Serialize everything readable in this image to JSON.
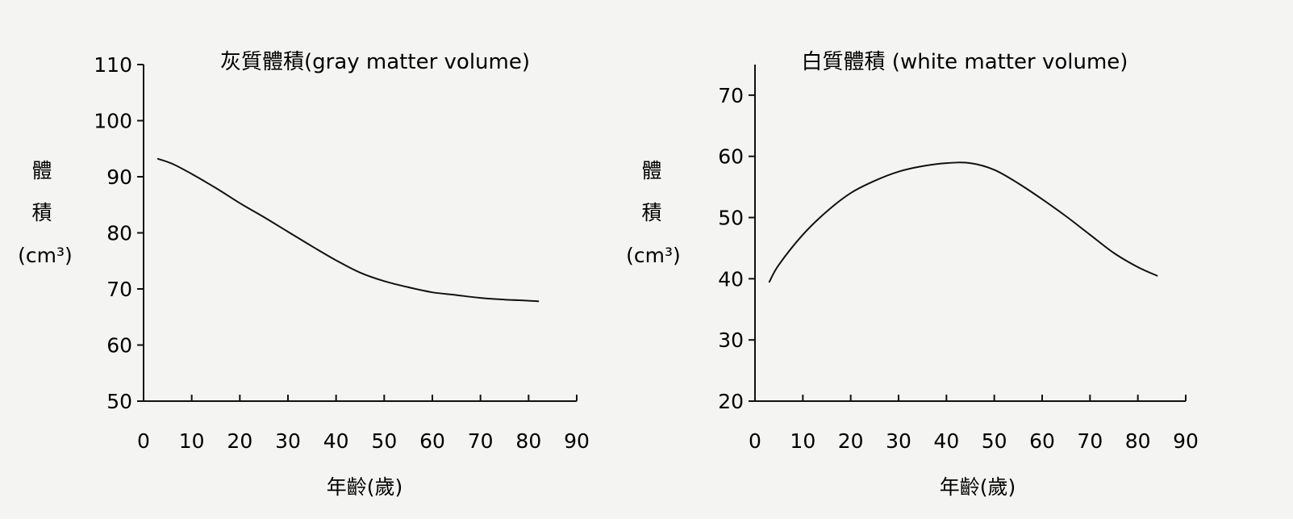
{
  "chart_data": [
    {
      "type": "line",
      "title": "灰質體積(gray matter volume)",
      "xlabel": "年齡(歲)",
      "ylabel_lines": [
        "體",
        "積",
        "(cm³)"
      ],
      "xlim": [
        0,
        90
      ],
      "ylim": [
        50,
        110
      ],
      "xticks": [
        0,
        10,
        20,
        30,
        40,
        50,
        60,
        70,
        80,
        90
      ],
      "yticks": [
        50,
        60,
        70,
        80,
        90,
        100,
        110
      ],
      "grid": false,
      "line_color": "#111111",
      "series": [
        {
          "x": [
            3,
            6,
            10,
            15,
            20,
            25,
            30,
            35,
            40,
            45,
            50,
            55,
            60,
            65,
            70,
            75,
            80,
            82
          ],
          "values": [
            93.2,
            92.3,
            90.5,
            88.0,
            85.3,
            82.8,
            80.2,
            77.6,
            75.1,
            72.9,
            71.4,
            70.3,
            69.4,
            68.9,
            68.4,
            68.1,
            67.9,
            67.8
          ]
        }
      ]
    },
    {
      "type": "line",
      "title": "白質體積 (white matter volume)",
      "xlabel": "年齡(歲)",
      "ylabel_lines": [
        "體",
        "積",
        "(cm³)"
      ],
      "xlim": [
        0,
        90
      ],
      "ylim": [
        20,
        75
      ],
      "xticks": [
        0,
        10,
        20,
        30,
        40,
        50,
        60,
        70,
        80,
        90
      ],
      "yticks": [
        20,
        30,
        40,
        50,
        60,
        70
      ],
      "grid": false,
      "line_color": "#111111",
      "series": [
        {
          "x": [
            3,
            5,
            10,
            15,
            20,
            25,
            30,
            35,
            40,
            45,
            50,
            55,
            60,
            65,
            70,
            75,
            80,
            84
          ],
          "values": [
            39.5,
            42.3,
            47.2,
            51.0,
            54.0,
            56.0,
            57.5,
            58.4,
            58.9,
            58.9,
            57.8,
            55.6,
            53.0,
            50.2,
            47.2,
            44.2,
            41.9,
            40.5
          ]
        }
      ]
    }
  ]
}
